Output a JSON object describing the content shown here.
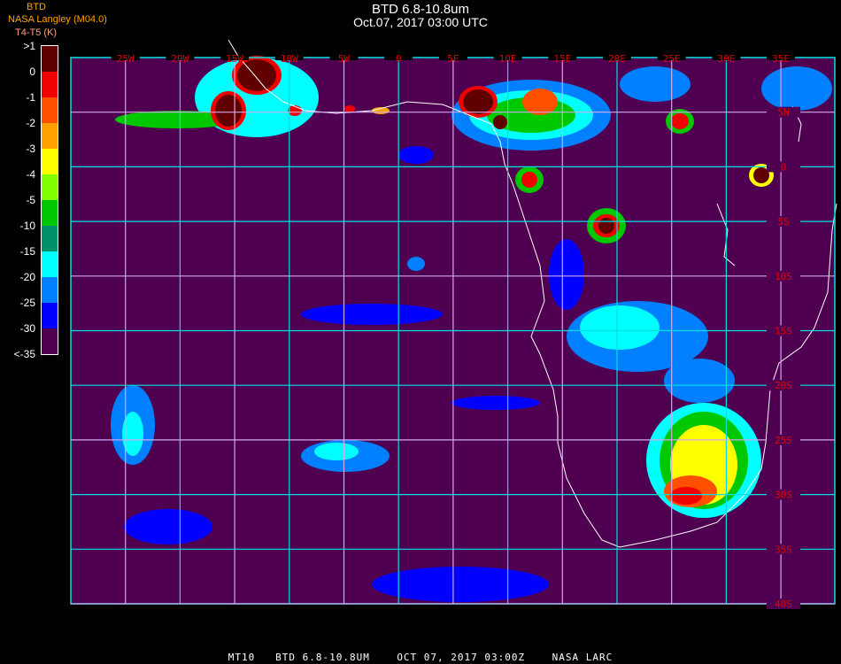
{
  "header": {
    "title": "BTD 6.8-10.8um",
    "subtitle": "Oct.07, 2017 03:00 UTC",
    "org": "NASA Langley (M04.0)",
    "overlay_label": "BTD",
    "units": "T4-T5 (K)"
  },
  "colorbar": {
    "labels": [
      ">1",
      "0",
      "-1",
      "-2",
      "-3",
      "-4",
      "-5",
      "-10",
      "-15",
      "-20",
      "-25",
      "-30",
      "<-35"
    ],
    "colors": [
      "#600000",
      "#f00000",
      "#ff5000",
      "#ffa000",
      "#ffff00",
      "#80ff00",
      "#00c800",
      "#00906a",
      "#00ffff",
      "#0080ff",
      "#0000ff",
      "#500050"
    ]
  },
  "map": {
    "background": "#500050",
    "grid_color": "#00e0e0",
    "coast_color": "#ffffff",
    "label_color": "#e00000",
    "lon_labels": [
      "25W",
      "20W",
      "15W",
      "10W",
      "5W",
      "0",
      "5E",
      "10E",
      "15E",
      "20E",
      "25E",
      "30E",
      "35E"
    ],
    "lat_labels": [
      "5N",
      "0",
      "5S",
      "10S",
      "15S",
      "20S",
      "25S",
      "30S",
      "35S",
      "40S"
    ]
  },
  "footer": "MT10   BTD 6.8-10.8UM    OCT 07, 2017 03:00Z    NASA LARC"
}
